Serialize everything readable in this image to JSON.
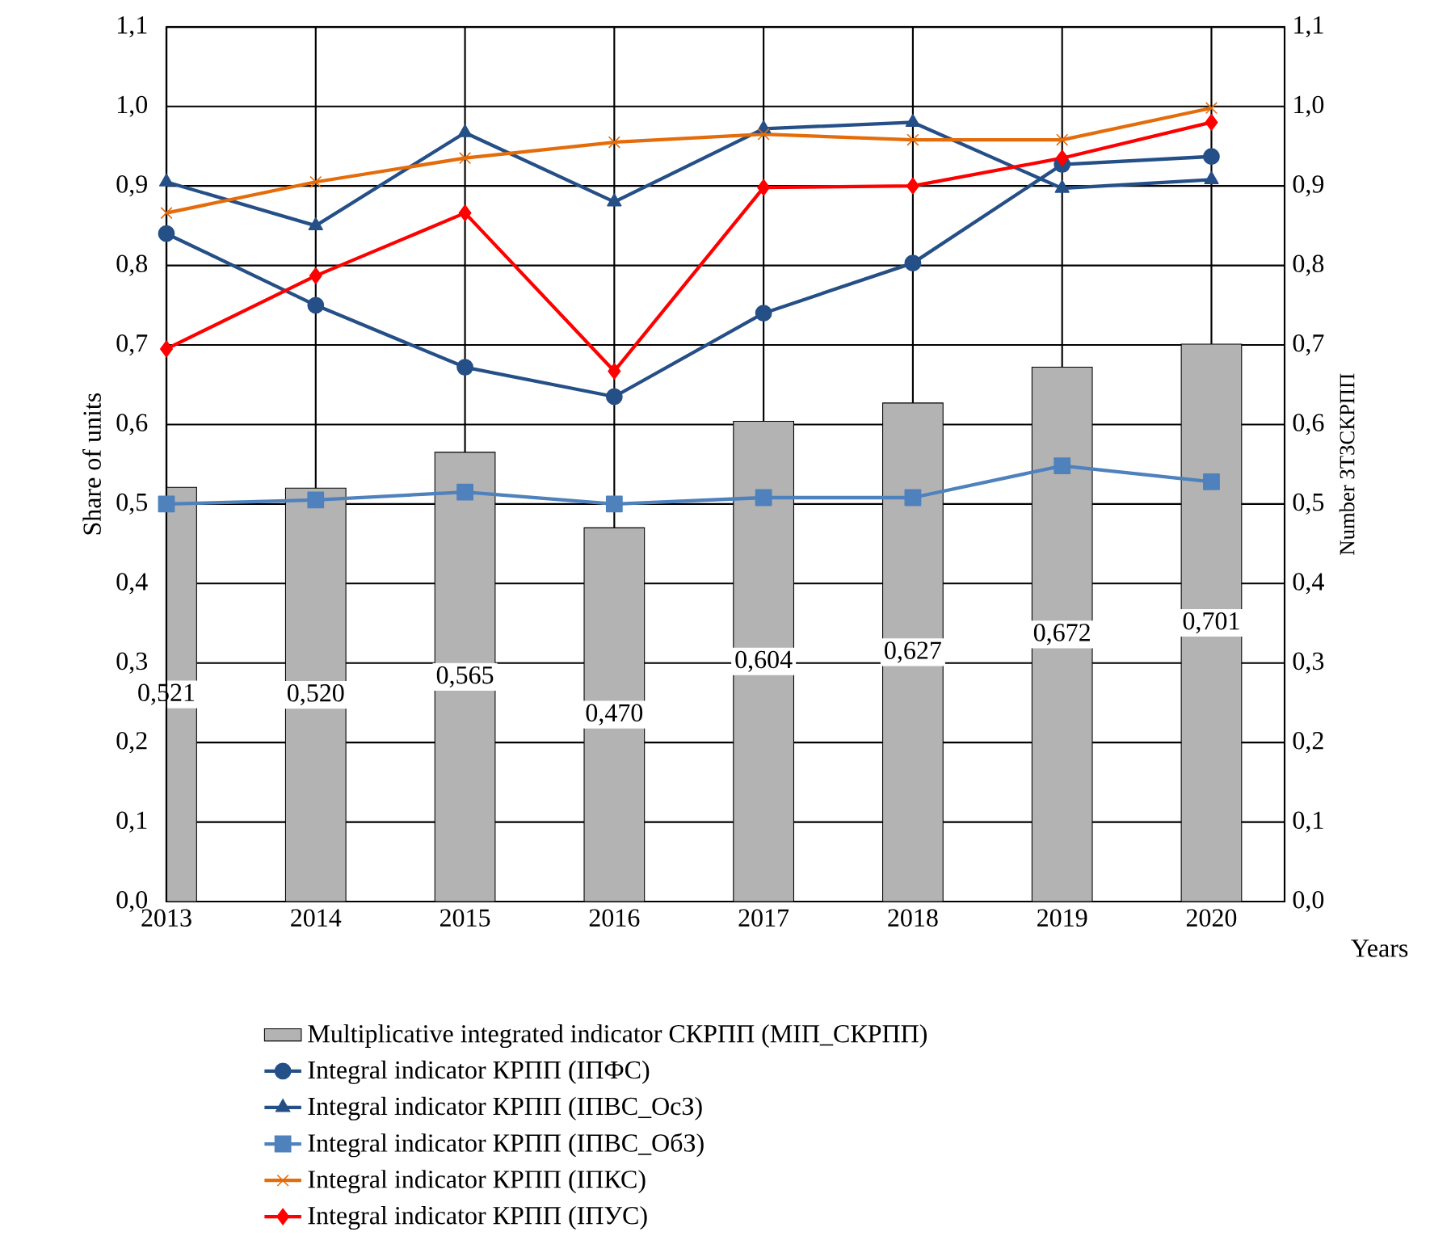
{
  "chart_data": {
    "type": "bar",
    "xlabel": "Years",
    "ylabel": "Share of units",
    "y2label": "Number ЗТЗСКРПП",
    "categories": [
      "2013",
      "2014",
      "2015",
      "2016",
      "2017",
      "2018",
      "2019",
      "2020"
    ],
    "ylim": [
      0,
      1.1
    ],
    "y2lim": [
      0,
      1.1
    ],
    "yticks": [
      {
        "value": 0,
        "label": "0,0"
      },
      {
        "value": 0.1,
        "label": "0,1"
      },
      {
        "value": 0.2,
        "label": "0,2"
      },
      {
        "value": 0.3,
        "label": "0,3"
      },
      {
        "value": 0.4,
        "label": "0,4"
      },
      {
        "value": 0.5,
        "label": "0,5"
      },
      {
        "value": 0.6,
        "label": "0,6"
      },
      {
        "value": 0.7,
        "label": "0,7"
      },
      {
        "value": 0.8,
        "label": "0,8"
      },
      {
        "value": 0.9,
        "label": "0,9"
      },
      {
        "value": 1.0,
        "label": "1,0"
      },
      {
        "value": 1.1,
        "label": "1,1"
      }
    ],
    "y2ticks": [
      {
        "value": 0,
        "label": "0,0"
      },
      {
        "value": 0.1,
        "label": "0,1"
      },
      {
        "value": 0.2,
        "label": "0,2"
      },
      {
        "value": 0.3,
        "label": "0,3"
      },
      {
        "value": 0.4,
        "label": "0,4"
      },
      {
        "value": 0.5,
        "label": "0,5"
      },
      {
        "value": 0.6,
        "label": "0,6"
      },
      {
        "value": 0.7,
        "label": "0,7"
      },
      {
        "value": 0.8,
        "label": "0,8"
      },
      {
        "value": 0.9,
        "label": "0,9"
      },
      {
        "value": 1.0,
        "label": "1,0"
      },
      {
        "value": 1.1,
        "label": "1,1"
      }
    ],
    "grid": true,
    "legend": "bottom",
    "series": [
      {
        "name": "Multiplicative integrated indicator СКРПП (МІП_СКРПП)",
        "axis": "y2",
        "color": "#b3b3b3",
        "values": [
          0.521,
          0.52,
          0.565,
          0.47,
          0.604,
          0.627,
          0.672,
          0.701
        ],
        "value_labels": [
          "0,521",
          "0,520",
          "0,565",
          "0,470",
          "0,604",
          "0,627",
          "0,672",
          "0,701"
        ]
      },
      {
        "name": "Integral indicator КРПП (ІПФС)",
        "type": "line",
        "color": "#254f87",
        "marker": "circle",
        "values": [
          0.84,
          0.75,
          0.672,
          0.635,
          0.74,
          0.803,
          0.927,
          0.937
        ]
      },
      {
        "name": "Integral indicator КРПП (ІПВС_ОсЗ)",
        "type": "line",
        "color": "#254f87",
        "marker": "triangle",
        "values": [
          0.905,
          0.85,
          0.967,
          0.88,
          0.972,
          0.98,
          0.897,
          0.908
        ]
      },
      {
        "name": "Integral indicator КРПП (ІПВС_ОбЗ)",
        "type": "line",
        "color": "#4f81bd",
        "marker": "square",
        "values": [
          0.5,
          0.505,
          0.515,
          0.5,
          0.508,
          0.508,
          0.548,
          0.528
        ]
      },
      {
        "name": "Integral indicator КРПП (ІПКС)",
        "type": "line",
        "color": "#e46c0a",
        "marker": "cross",
        "values": [
          0.866,
          0.905,
          0.935,
          0.955,
          0.965,
          0.958,
          0.958,
          0.998
        ]
      },
      {
        "name": "Integral indicator КРПП (ІПУС)",
        "type": "line",
        "color": "#ff0000",
        "marker": "diamond",
        "values": [
          0.695,
          0.787,
          0.866,
          0.667,
          0.898,
          0.9,
          0.935,
          0.98
        ]
      }
    ]
  }
}
